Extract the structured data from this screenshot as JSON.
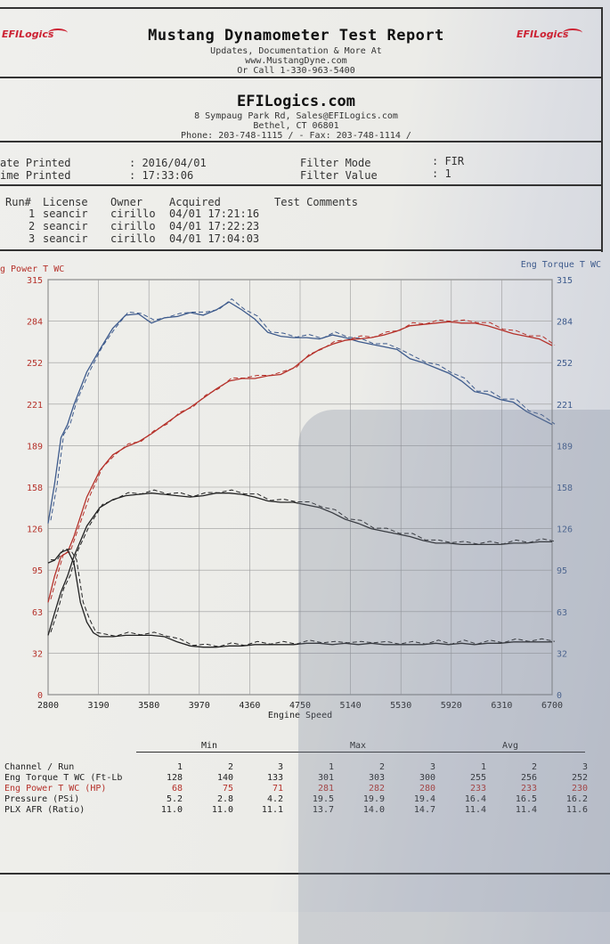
{
  "header": {
    "title": "Mustang Dynamometer Test Report",
    "line1": "Updates, Documentation & More At",
    "line2": "www.MustangDyne.com",
    "line3": "Or Call 1-330-963-5400",
    "logo_left": "EFILogics",
    "logo_right": "EFILogics"
  },
  "shop": {
    "name": "EFILogics.com",
    "address": "8 Sympaug Park Rd, Sales@EFILogics.com",
    "city": "Bethel, CT  06801",
    "phone": "Phone: 203-748-1115 /  - Fax: 203-748-1114 /"
  },
  "print_info": {
    "date_label": "ate Printed",
    "time_label": "ime Printed",
    "date_value": ": 2016/04/01",
    "time_value": ": 17:33:06",
    "filter_mode_label": "Filter Mode",
    "filter_value_label": "Filter Value",
    "filter_mode_value": ": FIR",
    "filter_value_value": ": 1"
  },
  "runs": {
    "headers": [
      "Run#",
      "License",
      "Owner",
      "Acquired",
      "Test Comments"
    ],
    "rows": [
      {
        "run": "1",
        "license": "seancir",
        "owner": "cirillo",
        "acquired": "04/01 17:21:16"
      },
      {
        "run": "2",
        "license": "seancir",
        "owner": "cirillo",
        "acquired": "04/01 17:22:23"
      },
      {
        "run": "3",
        "license": "seancir",
        "owner": "cirillo",
        "acquired": "04/01 17:04:03"
      }
    ]
  },
  "chart_data": {
    "type": "line",
    "left_axis_label": "g Power T WC",
    "right_axis_label": "Eng Torque T WC",
    "xlabel": "Engine Speed",
    "x_ticks": [
      "2800",
      "3190",
      "3580",
      "3970",
      "4360",
      "4750",
      "5140",
      "5530",
      "5920",
      "6310",
      "6700"
    ],
    "y_ticks": [
      "0",
      "32",
      "63",
      "95",
      "126",
      "158",
      "189",
      "221",
      "252",
      "284",
      "315"
    ],
    "xlim": [
      2800,
      6700
    ],
    "ylim": [
      0,
      315
    ],
    "grid": true,
    "colors": {
      "power": "#b5312a",
      "torque": "#3d5a8c",
      "aux": "#222222",
      "grid": "#9a9a9a"
    },
    "series": [
      {
        "color_key": "torque",
        "x": [
          2800,
          2850,
          2900,
          2950,
          3000,
          3100,
          3200,
          3300,
          3400,
          3500,
          3600,
          3700,
          3800,
          3900,
          4000,
          4100,
          4200,
          4300,
          4400,
          4500,
          4600,
          4700,
          4800,
          4900,
          5000,
          5100,
          5200,
          5300,
          5400,
          5500,
          5600,
          5700,
          5800,
          5900,
          6000,
          6100,
          6200,
          6300,
          6400,
          6500,
          6600,
          6700
        ],
        "y": [
          130,
          160,
          195,
          205,
          220,
          245,
          262,
          278,
          288,
          289,
          282,
          286,
          287,
          290,
          288,
          292,
          298,
          292,
          285,
          275,
          272,
          271,
          271,
          270,
          273,
          271,
          268,
          266,
          264,
          262,
          255,
          252,
          248,
          244,
          238,
          230,
          228,
          224,
          222,
          215,
          210,
          205
        ]
      },
      {
        "color_key": "power",
        "x": [
          2800,
          2850,
          2900,
          2950,
          3000,
          3100,
          3200,
          3300,
          3400,
          3500,
          3600,
          3700,
          3800,
          3900,
          4000,
          4100,
          4200,
          4300,
          4400,
          4500,
          4600,
          4700,
          4800,
          4900,
          5000,
          5100,
          5200,
          5300,
          5400,
          5500,
          5600,
          5700,
          5800,
          5900,
          6000,
          6100,
          6200,
          6300,
          6400,
          6500,
          6600,
          6700
        ],
        "y": [
          70,
          90,
          105,
          108,
          120,
          150,
          170,
          182,
          188,
          192,
          198,
          205,
          212,
          218,
          225,
          232,
          238,
          240,
          240,
          242,
          243,
          248,
          256,
          262,
          266,
          269,
          270,
          271,
          273,
          276,
          280,
          281,
          282,
          283,
          282,
          282,
          280,
          277,
          274,
          272,
          270,
          265
        ]
      },
      {
        "color_key": "aux",
        "x": [
          2800,
          2850,
          2900,
          2950,
          3000,
          3100,
          3200,
          3300,
          3400,
          3500,
          3600,
          3700,
          3800,
          3900,
          4000,
          4100,
          4200,
          4300,
          4400,
          4500,
          4600,
          4700,
          4800,
          4900,
          5000,
          5100,
          5200,
          5300,
          5400,
          5500,
          5600,
          5700,
          5800,
          5900,
          6000,
          6100,
          6200,
          6300,
          6400,
          6500,
          6600,
          6700
        ],
        "y": [
          45,
          62,
          78,
          90,
          105,
          128,
          142,
          148,
          151,
          152,
          153,
          152,
          151,
          150,
          151,
          153,
          153,
          152,
          150,
          147,
          146,
          146,
          144,
          142,
          138,
          133,
          130,
          126,
          124,
          122,
          120,
          117,
          115,
          115,
          114,
          114,
          114,
          114,
          115,
          115,
          116,
          116
        ]
      },
      {
        "color_key": "aux",
        "x": [
          2800,
          2850,
          2900,
          2950,
          3000,
          3050,
          3100,
          3150,
          3200,
          3300,
          3400,
          3500,
          3600,
          3700,
          3800,
          3900,
          4000,
          4100,
          4200,
          4300,
          4400,
          4500,
          4600,
          4700,
          4800,
          4900,
          5000,
          5100,
          5200,
          5300,
          5400,
          5500,
          5600,
          5700,
          5800,
          5900,
          6000,
          6100,
          6200,
          6300,
          6400,
          6500,
          6600,
          6700
        ],
        "y": [
          100,
          102,
          108,
          110,
          100,
          70,
          55,
          47,
          44,
          44,
          45,
          45,
          45,
          44,
          40,
          37,
          36,
          36,
          37,
          37,
          38,
          38,
          38,
          38,
          39,
          39,
          38,
          39,
          38,
          39,
          38,
          38,
          38,
          38,
          39,
          38,
          39,
          38,
          39,
          39,
          40,
          40,
          40,
          40
        ]
      }
    ]
  },
  "summary": {
    "groups": [
      "Min",
      "Max",
      "Avg"
    ],
    "channel_header": "Channel / Run",
    "run_headers": [
      "1",
      "2",
      "3",
      "1",
      "2",
      "3",
      "1",
      "2",
      "3"
    ],
    "rows": [
      {
        "label": "Eng Torque T WC (Ft-Lb",
        "values": [
          "128",
          "140",
          "133",
          "301",
          "303",
          "300",
          "255",
          "256",
          "252"
        ]
      },
      {
        "label": "Eng Power T WC (HP)",
        "values": [
          "68",
          "75",
          "71",
          "281",
          "282",
          "280",
          "233",
          "233",
          "230"
        ]
      },
      {
        "label": "Pressure (PSi)",
        "values": [
          "5.2",
          "2.8",
          "4.2",
          "19.5",
          "19.9",
          "19.4",
          "16.4",
          "16.5",
          "16.2"
        ]
      },
      {
        "label": "PLX AFR (Ratio)",
        "values": [
          "11.0",
          "11.0",
          "11.1",
          "13.7",
          "14.0",
          "14.7",
          "11.4",
          "11.4",
          "11.6"
        ]
      }
    ]
  }
}
